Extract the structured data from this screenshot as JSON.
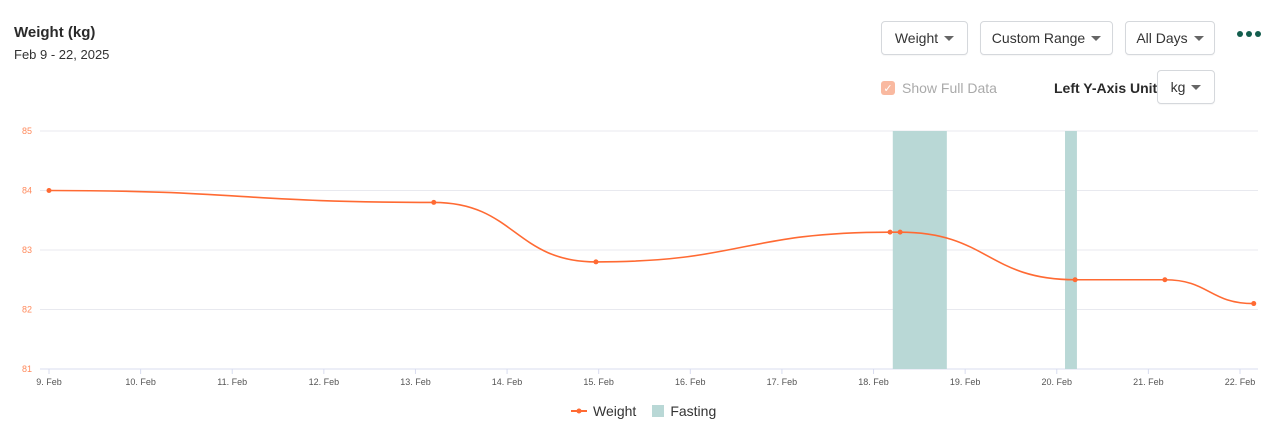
{
  "header": {
    "title": "Weight (kg)",
    "subtitle": "Feb 9 - 22, 2025"
  },
  "toolbar": {
    "metric": "Weight",
    "range": "Custom Range",
    "days": "All Days",
    "more_icon": "more-dots-icon",
    "show_full_data": "Show Full Data",
    "show_full_data_checked": true,
    "unit_label": "Left Y-Axis Unit",
    "unit": "kg"
  },
  "colors": {
    "weight": "#ff6a33",
    "fasting": "#b9d8d6",
    "grid": "#e8e9ef",
    "more": "#135e4e"
  },
  "chart_data": {
    "type": "line",
    "title": "Weight (kg)",
    "ylim": [
      81,
      85
    ],
    "yticks": [
      "81",
      "82",
      "83",
      "84",
      "85"
    ],
    "xticks": [
      "9. Feb",
      "10. Feb",
      "11. Feb",
      "12. Feb",
      "13. Feb",
      "14. Feb",
      "15. Feb",
      "16. Feb",
      "17. Feb",
      "18. Feb",
      "19. Feb",
      "20. Feb",
      "21. Feb",
      "22. Feb"
    ],
    "x_unit": "days since 9 Feb",
    "series": [
      {
        "name": "Weight",
        "x": [
          0,
          4.2,
          5.97,
          9.18,
          9.29,
          11.2,
          12.18,
          13.15
        ],
        "values": [
          84,
          83.8,
          82.8,
          83.3,
          83.3,
          82.5,
          82.5,
          82.1
        ]
      }
    ],
    "bands": [
      {
        "name": "Fasting",
        "from": 9.21,
        "to": 9.8
      },
      {
        "name": "Fasting",
        "from": 11.09,
        "to": 11.22
      }
    ],
    "legend": [
      "Weight",
      "Fasting"
    ],
    "legend_position": "bottom-center",
    "grid": true
  }
}
